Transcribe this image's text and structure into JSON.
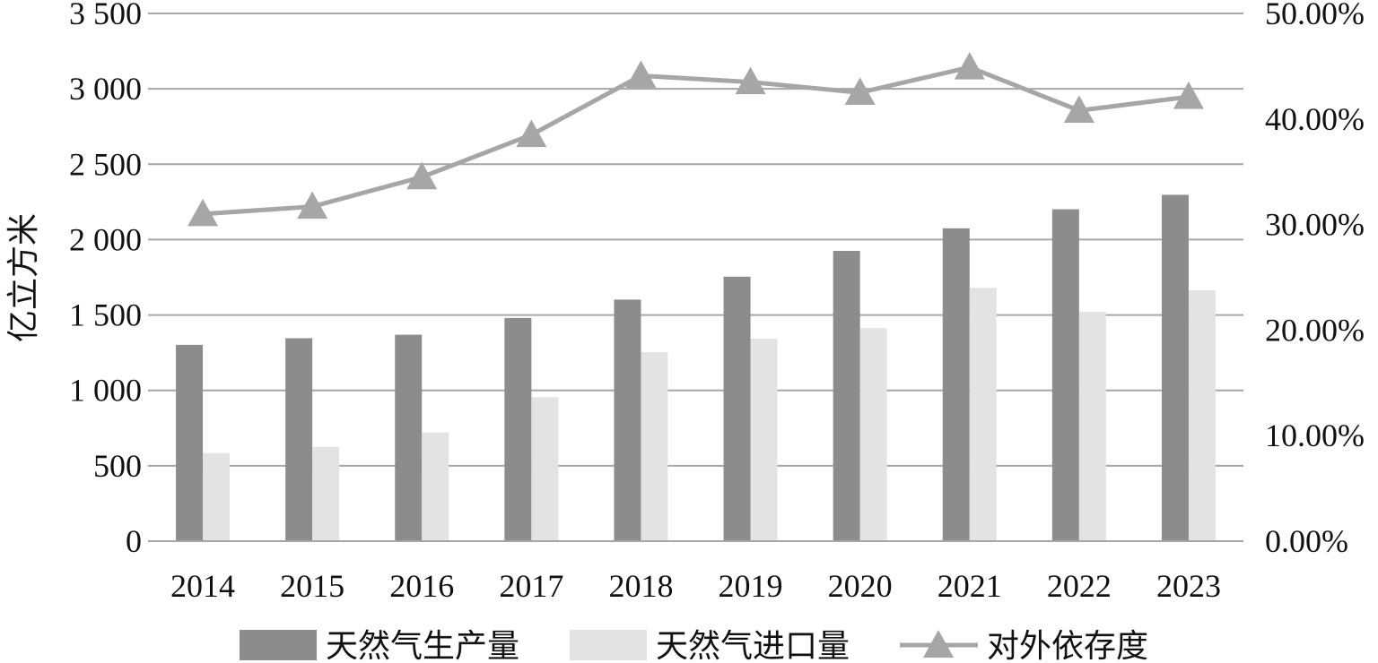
{
  "chart_data": {
    "type": "bar",
    "categories": [
      "2014",
      "2015",
      "2016",
      "2017",
      "2018",
      "2019",
      "2020",
      "2021",
      "2022",
      "2023"
    ],
    "ylabel": "亿立方米",
    "ylim": [
      0,
      3500
    ],
    "y_ticks": [
      "0",
      "500",
      "1 000",
      "1 500",
      "2 000",
      "2 500",
      "3 000",
      "3 500"
    ],
    "y2lim": [
      0,
      50
    ],
    "y2_ticks": [
      "0.00%",
      "10.00%",
      "20.00%",
      "30.00%",
      "40.00%",
      "50.00%"
    ],
    "grid": true,
    "legend_position": "bottom",
    "series": [
      {
        "name": "天然气生产量",
        "type": "bar",
        "axis": "left",
        "color": "#8c8c8c",
        "values": [
          1302,
          1346,
          1369,
          1480,
          1602,
          1754,
          1925,
          2075,
          2201,
          2297
        ]
      },
      {
        "name": "天然气进口量",
        "type": "bar",
        "axis": "left",
        "color": "#e3e3e3",
        "values": [
          584,
          624,
          721,
          955,
          1254,
          1343,
          1413,
          1680,
          1520,
          1664
        ]
      },
      {
        "name": "对外依存度",
        "type": "line",
        "marker": "triangle",
        "axis": "right",
        "unit": "%",
        "color": "#a6a6a6",
        "values": [
          31.0,
          31.7,
          34.5,
          38.5,
          44.1,
          43.5,
          42.5,
          44.9,
          40.8,
          42.1
        ]
      }
    ]
  }
}
